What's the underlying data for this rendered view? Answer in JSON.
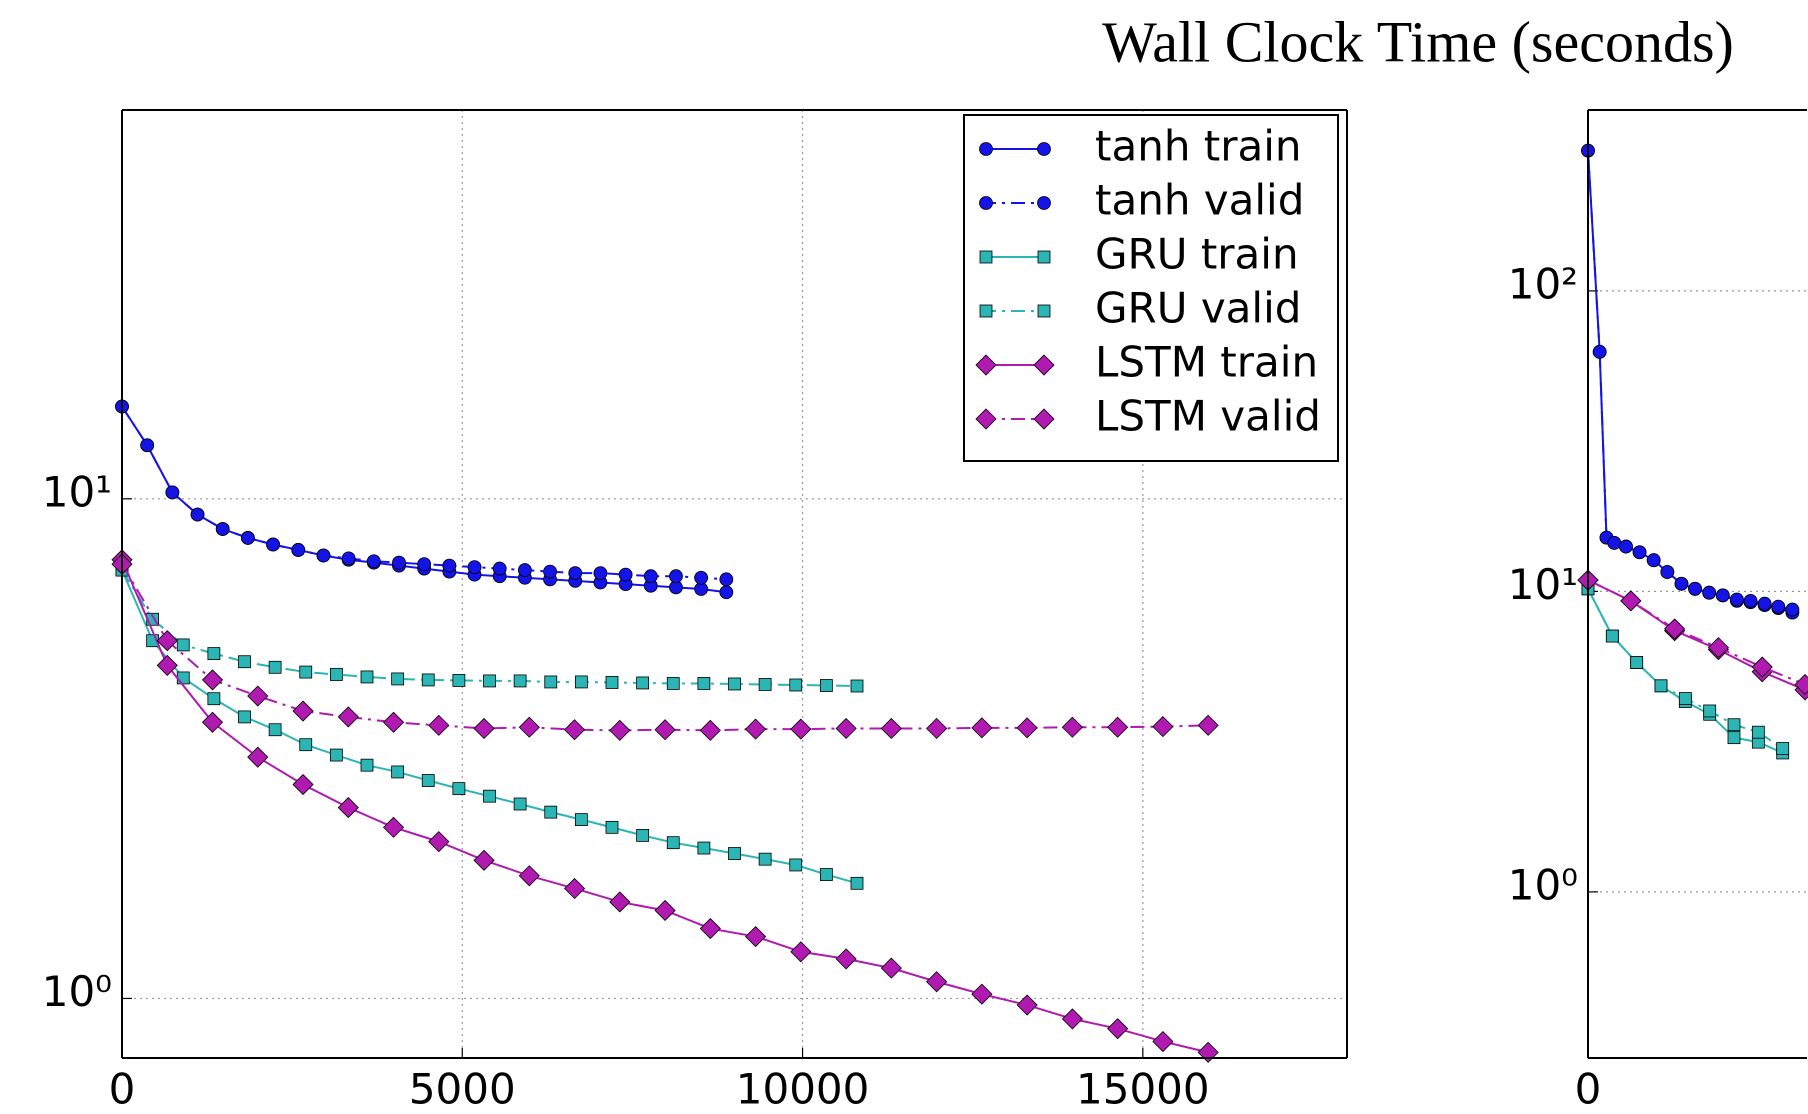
{
  "title": "Wall Clock Time (seconds)",
  "chart_data": [
    {
      "type": "line",
      "xlim": [
        0,
        18000
      ],
      "ylim": [
        0.76,
        60
      ],
      "log_y": true,
      "grid": true,
      "legend": "upper right",
      "xticks": [
        0,
        5000,
        10000,
        15000
      ],
      "yticks": [
        {
          "value": 1,
          "label": "10⁰"
        },
        {
          "value": 10,
          "label": "10¹"
        }
      ],
      "series": [
        {
          "name": "tanh train",
          "color": "#1414e6",
          "linestyle": "solid",
          "marker": "circle",
          "x": [
            0,
            370,
            740,
            1110,
            1480,
            1850,
            2220,
            2590,
            2960,
            3330,
            3700,
            4070,
            4440,
            4810,
            5180,
            5550,
            5920,
            6290,
            6660,
            7030,
            7400,
            7770,
            8140,
            8510,
            8880
          ],
          "values": [
            15.3,
            12.8,
            10.3,
            9.3,
            8.7,
            8.35,
            8.1,
            7.9,
            7.7,
            7.55,
            7.45,
            7.35,
            7.25,
            7.15,
            7.05,
            7.0,
            6.95,
            6.9,
            6.85,
            6.8,
            6.75,
            6.7,
            6.65,
            6.6,
            6.5
          ]
        },
        {
          "name": "tanh valid",
          "color": "#1414e6",
          "linestyle": "dashdot",
          "marker": "circle",
          "x": [
            0,
            370,
            740,
            1110,
            1480,
            1850,
            2220,
            2590,
            2960,
            3330,
            3700,
            4070,
            4440,
            4810,
            5180,
            5550,
            5920,
            6290,
            6660,
            7030,
            7400,
            7770,
            8140,
            8510,
            8880
          ],
          "values": [
            15.3,
            12.8,
            10.3,
            9.3,
            8.7,
            8.35,
            8.1,
            7.9,
            7.7,
            7.6,
            7.5,
            7.45,
            7.4,
            7.35,
            7.3,
            7.25,
            7.2,
            7.15,
            7.1,
            7.1,
            7.05,
            7.0,
            7.0,
            6.95,
            6.9
          ]
        },
        {
          "name": "GRU train",
          "color": "#2bb5b5",
          "linestyle": "solid",
          "marker": "square",
          "x": [
            0,
            450,
            900,
            1350,
            1800,
            2250,
            2700,
            3150,
            3600,
            4050,
            4500,
            4950,
            5400,
            5850,
            6300,
            6750,
            7200,
            7650,
            8100,
            8550,
            9000,
            9450,
            9900,
            10350,
            10800
          ],
          "values": [
            7.2,
            5.2,
            4.38,
            3.98,
            3.66,
            3.45,
            3.22,
            3.07,
            2.93,
            2.84,
            2.73,
            2.63,
            2.54,
            2.45,
            2.36,
            2.28,
            2.2,
            2.12,
            2.05,
            2.0,
            1.95,
            1.9,
            1.85,
            1.77,
            1.7
          ]
        },
        {
          "name": "GRU valid",
          "color": "#2bb5b5",
          "linestyle": "dashdot",
          "marker": "square",
          "x": [
            0,
            450,
            900,
            1350,
            1800,
            2250,
            2700,
            3150,
            3600,
            4050,
            4500,
            4950,
            5400,
            5850,
            6300,
            6750,
            7200,
            7650,
            8100,
            8550,
            9000,
            9450,
            9900,
            10350,
            10800
          ],
          "values": [
            7.2,
            5.74,
            5.1,
            4.9,
            4.72,
            4.6,
            4.5,
            4.45,
            4.4,
            4.36,
            4.34,
            4.33,
            4.32,
            4.32,
            4.3,
            4.3,
            4.29,
            4.28,
            4.27,
            4.27,
            4.26,
            4.25,
            4.24,
            4.23,
            4.22
          ]
        },
        {
          "name": "LSTM train",
          "color": "#b01ab0",
          "linestyle": "solid",
          "marker": "diamond",
          "x": [
            0,
            665,
            1330,
            1995,
            2660,
            3325,
            3990,
            4655,
            5320,
            5985,
            6650,
            7315,
            7980,
            8645,
            9310,
            9975,
            10640,
            11305,
            11970,
            12635,
            13300,
            13965,
            14630,
            15295,
            15960
          ],
          "values": [
            7.55,
            4.64,
            3.57,
            3.04,
            2.68,
            2.41,
            2.2,
            2.06,
            1.89,
            1.76,
            1.66,
            1.56,
            1.5,
            1.38,
            1.33,
            1.24,
            1.2,
            1.15,
            1.08,
            1.02,
            0.97,
            0.91,
            0.87,
            0.82,
            0.78
          ]
        },
        {
          "name": "LSTM valid",
          "color": "#b01ab0",
          "linestyle": "dashdot",
          "marker": "diamond",
          "x": [
            0,
            665,
            1330,
            1995,
            2660,
            3325,
            3990,
            4655,
            5320,
            5985,
            6650,
            7315,
            7980,
            8645,
            9310,
            9975,
            10640,
            11305,
            11970,
            12635,
            13300,
            13965,
            14630,
            15295,
            15960
          ],
          "values": [
            7.4,
            5.2,
            4.34,
            4.03,
            3.76,
            3.66,
            3.57,
            3.52,
            3.47,
            3.49,
            3.45,
            3.44,
            3.45,
            3.44,
            3.46,
            3.46,
            3.47,
            3.47,
            3.47,
            3.48,
            3.48,
            3.49,
            3.49,
            3.5,
            3.52
          ]
        }
      ]
    },
    {
      "type": "line",
      "xlim": [
        0,
        4500
      ],
      "ylim": [
        0.28,
        400
      ],
      "log_y": true,
      "grid": true,
      "xticks": [
        0
      ],
      "yticks": [
        {
          "value": 1,
          "label": "10⁰"
        },
        {
          "value": 10,
          "label": "10¹"
        },
        {
          "value": 100,
          "label": "10²"
        }
      ],
      "series": [
        {
          "color": "#1414e6",
          "linestyle": "solid",
          "marker": "circle",
          "x": [
            0,
            240,
            380,
            540,
            780,
            1060,
            1350,
            1630,
            1920,
            2200,
            2490,
            2770,
            3060,
            3340,
            3630,
            3910,
            4200
          ],
          "values": [
            293,
            62.7,
            15.1,
            14.5,
            14.1,
            13.5,
            12.7,
            11.6,
            10.6,
            10.2,
            9.9,
            9.7,
            9.3,
            9.2,
            9.0,
            8.8,
            8.5
          ]
        },
        {
          "color": "#1414e6",
          "linestyle": "dashdot",
          "marker": "circle",
          "x": [
            0,
            240,
            380,
            540,
            780,
            1060,
            1350,
            1630,
            1920,
            2200,
            2490,
            2770,
            3060,
            3340,
            3630,
            3910,
            4200
          ],
          "values": [
            293,
            62.7,
            15.1,
            14.5,
            14.1,
            13.5,
            12.7,
            11.6,
            10.6,
            10.2,
            9.9,
            9.7,
            9.4,
            9.3,
            9.1,
            8.9,
            8.7
          ]
        },
        {
          "color": "#2bb5b5",
          "linestyle": "solid",
          "marker": "square",
          "x": [
            0,
            500,
            1000,
            1500,
            2000,
            2500,
            3000,
            3500,
            4000
          ],
          "values": [
            10.2,
            7.1,
            5.8,
            4.85,
            4.3,
            3.9,
            3.26,
            3.15,
            2.9
          ]
        },
        {
          "color": "#2bb5b5",
          "linestyle": "dashdot",
          "marker": "square",
          "x": [
            0,
            500,
            1000,
            1500,
            2000,
            2500,
            3000,
            3500,
            4000
          ],
          "values": [
            10.2,
            7.1,
            5.8,
            4.85,
            4.4,
            4.0,
            3.6,
            3.4,
            3.0
          ]
        },
        {
          "color": "#b01ab0",
          "linestyle": "solid",
          "marker": "diamond",
          "x": [
            0,
            880,
            1780,
            2680,
            3580,
            4460
          ],
          "values": [
            10.9,
            9.3,
            7.4,
            6.4,
            5.4,
            4.7
          ]
        },
        {
          "color": "#b01ab0",
          "linestyle": "dashdot",
          "marker": "diamond",
          "x": [
            0,
            880,
            1780,
            2680,
            3580,
            4460
          ],
          "values": [
            10.9,
            9.3,
            7.5,
            6.5,
            5.6,
            4.9
          ]
        }
      ]
    }
  ]
}
